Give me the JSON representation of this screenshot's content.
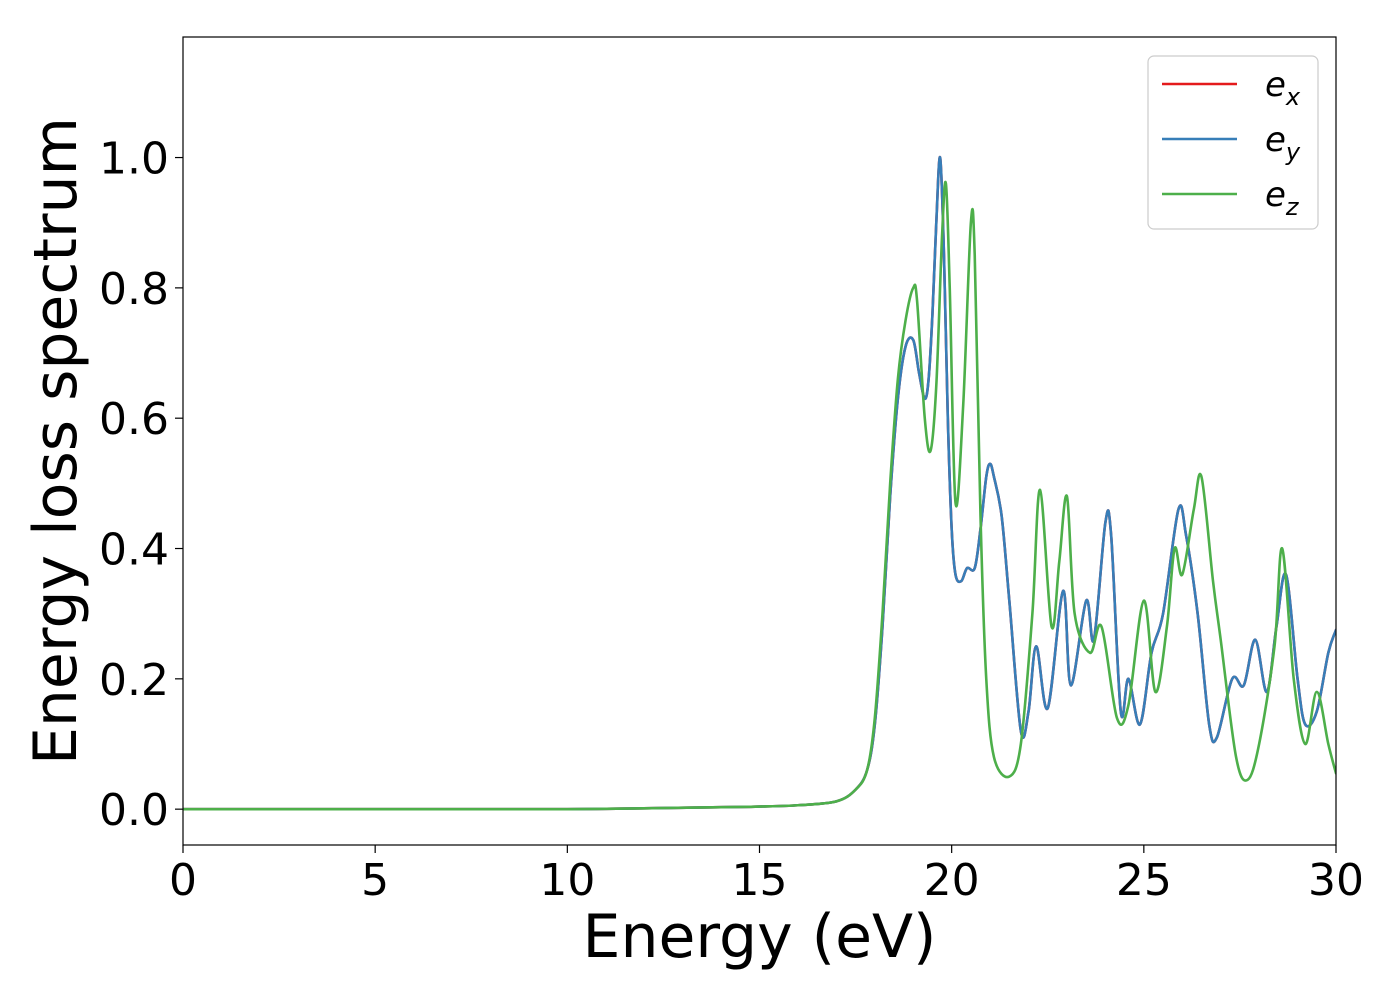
{
  "chart_data": {
    "type": "line",
    "title": "",
    "xlabel": "Energy (eV)",
    "ylabel": "Energy loss spectrum",
    "xlim": [
      0,
      30
    ],
    "ylim": [
      -0.055,
      1.185
    ],
    "xticks": [
      0,
      5,
      10,
      15,
      20,
      25,
      30
    ],
    "xtick_labels": [
      "0",
      "5",
      "10",
      "15",
      "20",
      "25",
      "30"
    ],
    "yticks": [
      0.0,
      0.2,
      0.4,
      0.6,
      0.8,
      1.0
    ],
    "ytick_labels": [
      "0.0",
      "0.2",
      "0.4",
      "0.6",
      "0.8",
      "1.0"
    ],
    "grid": false,
    "legend_position": "top-right",
    "series": [
      {
        "name": "e_x",
        "legend_base": "e",
        "legend_sub": "x",
        "color": "#e41a1c",
        "x": [
          0,
          5,
          10,
          14,
          15,
          16,
          17,
          17.5,
          17.8,
          18.0,
          18.2,
          18.4,
          18.6,
          18.8,
          19.0,
          19.15,
          19.3,
          19.4,
          19.5,
          19.6,
          19.7,
          19.8,
          19.9,
          20.0,
          20.1,
          20.25,
          20.4,
          20.6,
          20.75,
          20.9,
          21.0,
          21.1,
          21.3,
          21.5,
          21.8,
          22.0,
          22.2,
          22.5,
          22.9,
          23.1,
          23.5,
          23.7,
          24.0,
          24.15,
          24.4,
          24.6,
          24.9,
          25.2,
          25.5,
          25.9,
          26.1,
          26.4,
          26.7,
          26.9,
          27.3,
          27.6,
          27.9,
          28.2,
          28.45,
          28.7,
          29.0,
          29.2,
          29.5,
          29.8,
          30.0
        ],
        "y": [
          0.0,
          0.0,
          0.0,
          0.003,
          0.004,
          0.006,
          0.012,
          0.03,
          0.06,
          0.13,
          0.28,
          0.48,
          0.63,
          0.71,
          0.72,
          0.67,
          0.63,
          0.66,
          0.76,
          0.9,
          1.0,
          0.85,
          0.6,
          0.43,
          0.36,
          0.35,
          0.37,
          0.37,
          0.43,
          0.51,
          0.53,
          0.51,
          0.45,
          0.32,
          0.12,
          0.15,
          0.25,
          0.155,
          0.335,
          0.19,
          0.32,
          0.26,
          0.44,
          0.42,
          0.15,
          0.2,
          0.13,
          0.24,
          0.3,
          0.46,
          0.42,
          0.3,
          0.13,
          0.11,
          0.2,
          0.19,
          0.26,
          0.18,
          0.28,
          0.36,
          0.2,
          0.13,
          0.15,
          0.24,
          0.275
        ]
      },
      {
        "name": "e_y",
        "legend_base": "e",
        "legend_sub": "y",
        "color": "#377eb8",
        "x": [
          0,
          5,
          10,
          14,
          15,
          16,
          17,
          17.5,
          17.8,
          18.0,
          18.2,
          18.4,
          18.6,
          18.8,
          19.0,
          19.15,
          19.3,
          19.4,
          19.5,
          19.6,
          19.7,
          19.8,
          19.9,
          20.0,
          20.1,
          20.25,
          20.4,
          20.6,
          20.75,
          20.9,
          21.0,
          21.1,
          21.3,
          21.5,
          21.8,
          22.0,
          22.2,
          22.5,
          22.9,
          23.1,
          23.5,
          23.7,
          24.0,
          24.15,
          24.4,
          24.6,
          24.9,
          25.2,
          25.5,
          25.9,
          26.1,
          26.4,
          26.7,
          26.9,
          27.3,
          27.6,
          27.9,
          28.2,
          28.45,
          28.7,
          29.0,
          29.2,
          29.5,
          29.8,
          30.0
        ],
        "y": [
          0.0,
          0.0,
          0.0,
          0.003,
          0.004,
          0.006,
          0.012,
          0.03,
          0.06,
          0.13,
          0.28,
          0.48,
          0.63,
          0.71,
          0.72,
          0.67,
          0.63,
          0.66,
          0.76,
          0.9,
          1.0,
          0.85,
          0.6,
          0.43,
          0.36,
          0.35,
          0.37,
          0.37,
          0.43,
          0.51,
          0.53,
          0.51,
          0.45,
          0.32,
          0.12,
          0.15,
          0.25,
          0.155,
          0.335,
          0.19,
          0.32,
          0.26,
          0.44,
          0.42,
          0.15,
          0.2,
          0.13,
          0.24,
          0.3,
          0.46,
          0.42,
          0.3,
          0.13,
          0.11,
          0.2,
          0.19,
          0.26,
          0.18,
          0.28,
          0.36,
          0.2,
          0.13,
          0.15,
          0.24,
          0.275
        ]
      },
      {
        "name": "e_z",
        "legend_base": "e",
        "legend_sub": "z",
        "color": "#4daf4a",
        "x": [
          0,
          5,
          10,
          14,
          15,
          16,
          17,
          17.5,
          17.8,
          18.0,
          18.2,
          18.4,
          18.6,
          18.8,
          19.0,
          19.1,
          19.3,
          19.45,
          19.6,
          19.75,
          19.85,
          19.95,
          20.1,
          20.3,
          20.5,
          20.6,
          20.75,
          20.9,
          21.1,
          21.5,
          21.8,
          22.1,
          22.3,
          22.6,
          22.8,
          23.0,
          23.2,
          23.6,
          23.9,
          24.3,
          24.6,
          25.0,
          25.3,
          25.6,
          25.8,
          26.0,
          26.3,
          26.5,
          26.8,
          27.0,
          27.4,
          27.7,
          28.0,
          28.4,
          28.6,
          28.9,
          29.2,
          29.5,
          29.8,
          30.0
        ],
        "y": [
          0.0,
          0.0,
          0.0,
          0.003,
          0.004,
          0.006,
          0.012,
          0.03,
          0.06,
          0.14,
          0.3,
          0.5,
          0.66,
          0.75,
          0.8,
          0.78,
          0.6,
          0.55,
          0.65,
          0.88,
          0.96,
          0.8,
          0.47,
          0.62,
          0.9,
          0.85,
          0.45,
          0.2,
          0.08,
          0.05,
          0.1,
          0.3,
          0.49,
          0.28,
          0.38,
          0.48,
          0.3,
          0.24,
          0.28,
          0.14,
          0.16,
          0.32,
          0.18,
          0.28,
          0.4,
          0.36,
          0.46,
          0.51,
          0.35,
          0.26,
          0.08,
          0.045,
          0.1,
          0.25,
          0.4,
          0.2,
          0.1,
          0.18,
          0.1,
          0.055
        ]
      }
    ]
  }
}
